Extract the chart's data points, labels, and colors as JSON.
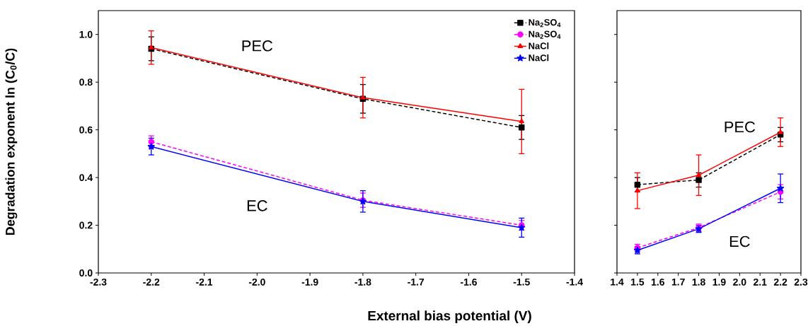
{
  "chart_data": [
    {
      "type": "line",
      "xlabel": "External bias potential (V)",
      "ylabel": "Degradation exponent ln (C$_{0}$/C)",
      "x": [
        -2.2,
        -1.8,
        -1.5
      ],
      "xlim": [
        -2.3,
        -1.4
      ],
      "xticks": [
        -2.3,
        -2.2,
        -2.1,
        {
          "value": -2.0,
          "label": "-2.0"
        },
        -1.9,
        -1.8,
        -1.7,
        -1.6,
        -1.5,
        -1.4
      ],
      "ylim": [
        0,
        1.1
      ],
      "yticks": [
        {
          "value": 0,
          "label": "0.0"
        },
        0.2,
        0.4,
        0.6,
        0.8,
        {
          "value": 1,
          "label": "1.0"
        }
      ],
      "legend": "top right",
      "annotations": [
        "PEC",
        "EC"
      ],
      "series": [
        {
          "name": "Na$_{2}$SO$_{4}$",
          "color": "#000000",
          "marker": "square",
          "line_style": "dashed",
          "values": [
            0.94,
            0.73,
            0.61
          ],
          "errors": [
            0.05,
            0.06,
            0.05
          ]
        },
        {
          "name": "Na$_{2}$SO$_{4}$",
          "color": "#ff00ff",
          "marker": "circle",
          "line_style": "dashed",
          "values": [
            0.55,
            0.305,
            0.2
          ],
          "errors": [
            0.025,
            0.03,
            0.02
          ]
        },
        {
          "name": "NaCl",
          "color": "#ff0000",
          "marker": "triangle",
          "line_style": "solid",
          "values": [
            0.945,
            0.735,
            0.635
          ],
          "errors": [
            0.07,
            0.085,
            0.135
          ]
        },
        {
          "name": "NaCl",
          "color": "#0000ff",
          "marker": "star",
          "line_style": "solid",
          "values": [
            0.53,
            0.3,
            0.19
          ],
          "errors": [
            0.035,
            0.045,
            0.04
          ]
        }
      ]
    },
    {
      "type": "line",
      "x": [
        1.5,
        1.8,
        2.2
      ],
      "xlim": [
        1.4,
        2.3
      ],
      "xticks": [
        1.4,
        1.5,
        1.6,
        1.7,
        1.8,
        1.9,
        {
          "value": 2.0,
          "label": "2.0"
        },
        2.1,
        2.2,
        2.3
      ],
      "ylim": [
        0,
        1.1
      ],
      "tick_labels": "x",
      "annotations": [
        "PEC",
        "EC"
      ],
      "series": [
        {
          "color": "#000000",
          "marker": "square",
          "line_style": "dashed",
          "values": [
            0.37,
            0.39,
            0.58
          ],
          "errors": [
            0.03,
            0.03,
            0.03
          ]
        },
        {
          "color": "#ff00ff",
          "marker": "circle",
          "line_style": "dashed",
          "values": [
            0.105,
            0.19,
            0.34
          ],
          "errors": [
            0.015,
            0.015,
            0.03
          ]
        },
        {
          "color": "#ff0000",
          "marker": "triangle",
          "line_style": "solid",
          "values": [
            0.345,
            0.41,
            0.59
          ],
          "errors": [
            0.075,
            0.085,
            0.06
          ]
        },
        {
          "color": "#0000ff",
          "marker": "star",
          "line_style": "solid",
          "values": [
            0.095,
            0.185,
            0.355
          ],
          "errors": [
            0.015,
            0.015,
            0.06
          ]
        }
      ]
    }
  ]
}
